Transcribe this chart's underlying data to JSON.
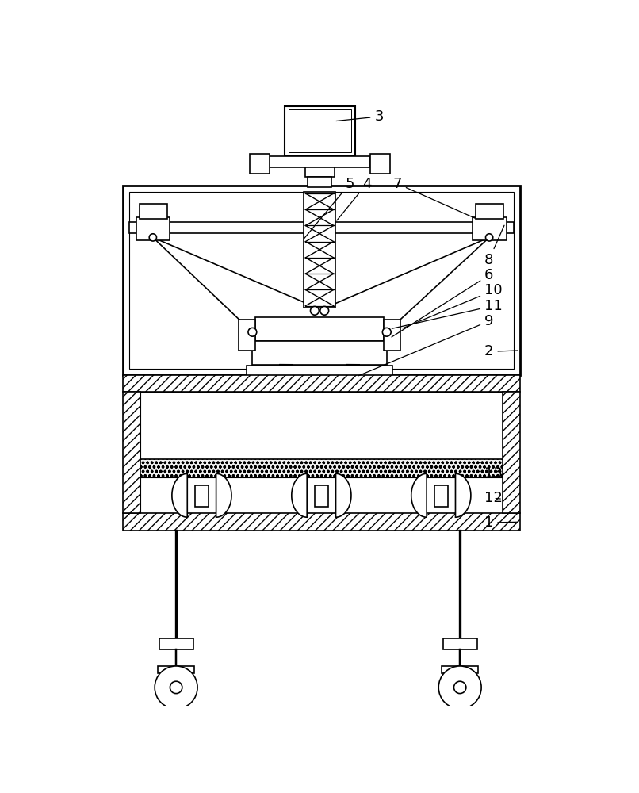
{
  "bg_color": "#ffffff",
  "line_color": "#000000",
  "figsize": [
    8.06,
    10.0
  ],
  "dpi": 100,
  "lw": 1.2
}
